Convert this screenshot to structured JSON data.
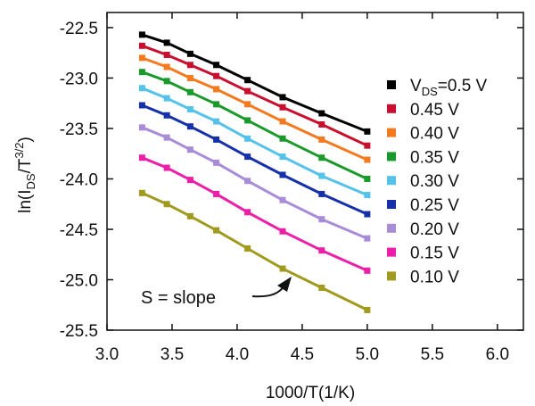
{
  "chart_data": {
    "type": "scatter",
    "title": "",
    "xlabel": "1000/T(1/K)",
    "ylabel": {
      "base": "ln(I",
      "sub1": "DS",
      "mid": "/T",
      "sup": "3/2",
      "end": ")"
    },
    "xlim": [
      3.0,
      6.2
    ],
    "ylim": [
      -25.5,
      -22.35
    ],
    "xticks": [
      3.0,
      3.5,
      4.0,
      4.5,
      5.0,
      5.5,
      6.0
    ],
    "xtick_labels": [
      "3.0",
      "3.5",
      "4.0",
      "4.5",
      "5.0",
      "5.5",
      "6.0"
    ],
    "yticks": [
      -22.5,
      -23.0,
      -23.5,
      -24.0,
      -24.5,
      -25.0,
      -25.5
    ],
    "ytick_labels": [
      "-22.5",
      "-23.0",
      "-23.5",
      "-24.0",
      "-24.5",
      "-25.0",
      "-25.5"
    ],
    "x": [
      3.27,
      3.46,
      3.64,
      3.84,
      4.08,
      4.35,
      4.65,
      5.0
    ],
    "series": [
      {
        "name": "0.5 V",
        "color": "#000000",
        "values": [
          -22.57,
          -22.65,
          -22.76,
          -22.87,
          -23.02,
          -23.19,
          -23.35,
          -23.53
        ]
      },
      {
        "name": "0.45 V",
        "color": "#c8102e",
        "values": [
          -22.68,
          -22.77,
          -22.87,
          -22.98,
          -23.13,
          -23.29,
          -23.46,
          -23.67
        ]
      },
      {
        "name": "0.40 V",
        "color": "#f47a20",
        "values": [
          -22.8,
          -22.89,
          -23.0,
          -23.11,
          -23.26,
          -23.43,
          -23.61,
          -23.81
        ]
      },
      {
        "name": "0.35 V",
        "color": "#1a9a2a",
        "values": [
          -22.94,
          -23.03,
          -23.14,
          -23.26,
          -23.42,
          -23.6,
          -23.79,
          -24.0
        ]
      },
      {
        "name": "0.30 V",
        "color": "#55c2ea",
        "values": [
          -23.1,
          -23.2,
          -23.31,
          -23.43,
          -23.6,
          -23.78,
          -23.97,
          -24.16
        ]
      },
      {
        "name": "0.25 V",
        "color": "#1530a8",
        "values": [
          -23.27,
          -23.37,
          -23.48,
          -23.61,
          -23.78,
          -23.96,
          -24.15,
          -24.35
        ]
      },
      {
        "name": "0.20 V",
        "color": "#a88cd8",
        "values": [
          -23.49,
          -23.59,
          -23.71,
          -23.84,
          -24.02,
          -24.21,
          -24.4,
          -24.59
        ]
      },
      {
        "name": "0.15 V",
        "color": "#ec1fa8",
        "values": [
          -23.79,
          -23.89,
          -24.01,
          -24.15,
          -24.33,
          -24.52,
          -24.71,
          -24.91
        ]
      },
      {
        "name": "0.10 V",
        "color": "#a09a1e",
        "values": [
          -24.14,
          -24.25,
          -24.37,
          -24.51,
          -24.69,
          -24.89,
          -25.08,
          -25.3
        ]
      }
    ],
    "legend": {
      "position": "right",
      "first": {
        "prefix": "V",
        "sub": "DS",
        "suffix": "=0.5 V"
      },
      "labels": [
        "0.45 V",
        "0.40 V",
        "0.35 V",
        "0.30 V",
        "0.25 V",
        "0.20 V",
        "0.15 V",
        "0.10 V"
      ]
    },
    "annotation": {
      "text": "S = slope"
    },
    "grid": false
  }
}
